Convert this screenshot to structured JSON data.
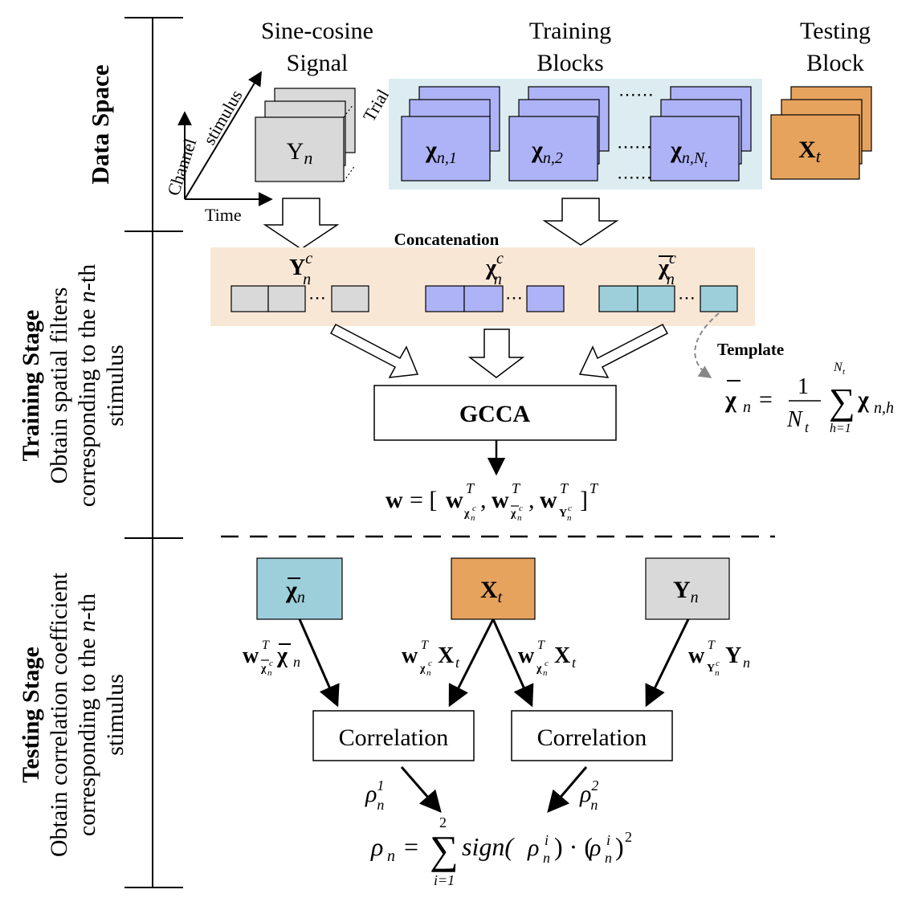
{
  "stages": {
    "data_space": "Data Space",
    "training_title": "Training Stage",
    "training_line1": "Obtain spatial filters",
    "training_line2_a": "corresponding to the ",
    "training_line2_n": "n",
    "training_line2_b": "-th",
    "training_line3": "stimulus",
    "testing_title": "Testing Stage",
    "testing_line1": "Obtain correlation coefficient",
    "testing_line2_a": "corresponding to the ",
    "testing_line2_n": "n",
    "testing_line2_b": "-th",
    "testing_line3": "stimulus"
  },
  "data_space": {
    "sine_title_1": "Sine-cosine",
    "sine_title_2": "Signal",
    "training_title_1": "Training",
    "training_title_2": "Blocks",
    "testing_title_1": "Testing",
    "testing_title_2": "Block",
    "axis_channel": "Channel",
    "axis_time": "Time",
    "axis_stimulus": "stimulus",
    "axis_trial": "Trial",
    "Y_base": "Y",
    "chi_base": "χ",
    "X_base": "X",
    "n_sub": "n",
    "sub_1": "n,1",
    "sub_2": "n,2",
    "sub_Nt_a": "n,",
    "sub_Nt_N": "N",
    "sub_Nt_t": "t",
    "t_sub": "t",
    "ellipsis": "⋯⋯"
  },
  "training": {
    "concat_label": "Concatenation",
    "sup_c": "c",
    "template_label": "Template",
    "gcca_label": "GCCA",
    "w_eq_prefix": "w = [",
    "w_eq_suffix": "]",
    "sup_T": "T",
    "comma": ",",
    "template_one": "1",
    "template_N": "N",
    "template_t": "t",
    "template_h1": "h=1",
    "template_sum_top_N": "N",
    "template_sub_nh": "n,h",
    "equals": "="
  },
  "testing": {
    "chi_bar_box": "χ",
    "x_box": "X",
    "y_box": "Y",
    "correlation_1": "Correlation",
    "correlation_2": "Correlation",
    "rho": "ρ",
    "rho_sup_1": "1",
    "rho_sup_2": "2",
    "rho_sup_i": "i",
    "sum_top": "2",
    "sum_bottom": "i=1",
    "sign_text": "sign(",
    "mid_text": ") · (",
    "end_text": ")",
    "square": "2"
  },
  "colors": {
    "gray_box": "#d9d9d9",
    "purple_box": "#aeb3f7",
    "orange_box": "#e6a35e",
    "teal_box": "#9dcfda",
    "blue_bg": "#dcecf0",
    "peach_bg": "#f9e7d6"
  }
}
